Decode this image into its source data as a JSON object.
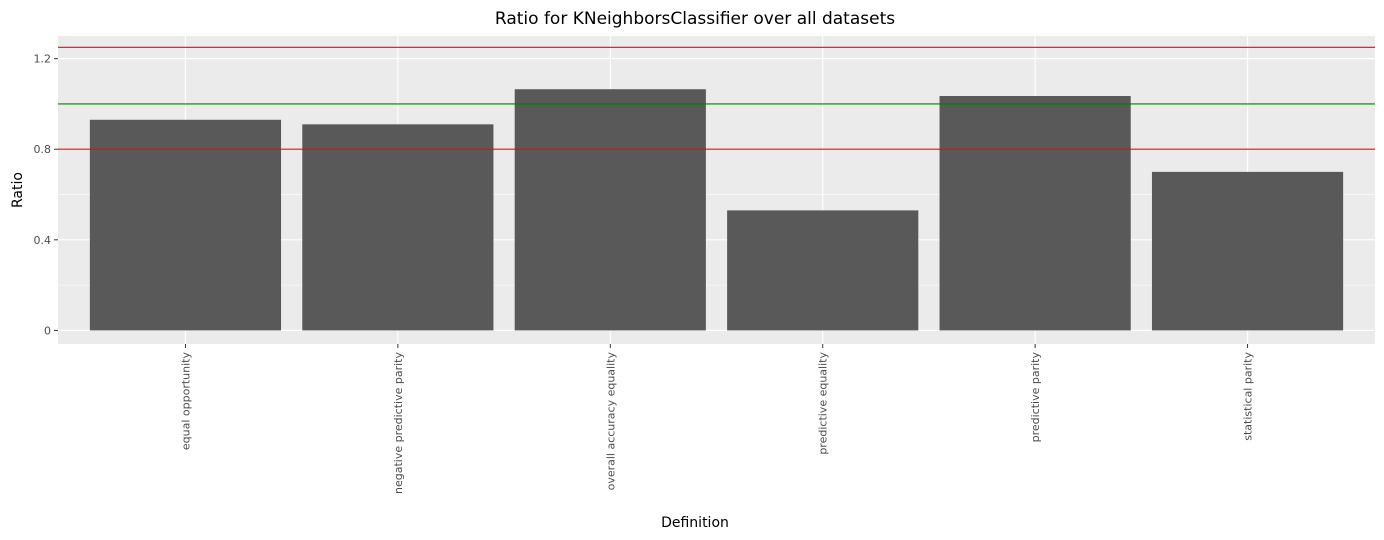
{
  "chart_data": {
    "type": "bar",
    "title": "Ratio for KNeighborsClassifier over all datasets",
    "xlabel": "Definition",
    "ylabel": "Ratio",
    "categories": [
      "equal opportunity",
      "negative predictive parity",
      "overall accuracy equality",
      "predictive equality",
      "predictive parity",
      "statistical parity"
    ],
    "values": [
      0.93,
      0.91,
      1.065,
      0.53,
      1.035,
      0.7
    ],
    "ylim": [
      -0.06,
      1.3
    ],
    "yticks": [
      0,
      0.4,
      0.8,
      1.2
    ],
    "ytick_labels": [
      "0",
      "0.4",
      "0.8",
      "1.2"
    ],
    "reference_lines": [
      {
        "value": 1.25,
        "color": "#ff0000"
      },
      {
        "value": 1.0,
        "color": "#008000"
      },
      {
        "value": 0.8,
        "color": "#ff0000"
      }
    ],
    "bar_color": "#595959",
    "panel_color": "#ebebeb",
    "grid": true,
    "legend": "none"
  }
}
